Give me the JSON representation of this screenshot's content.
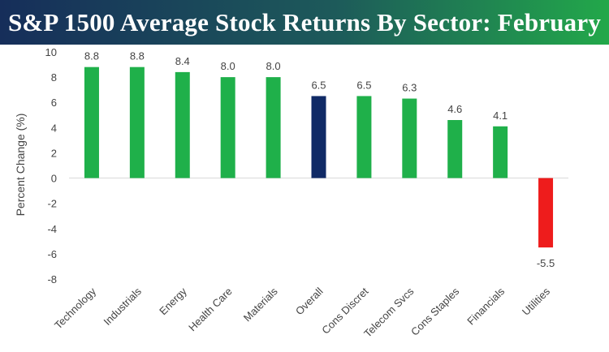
{
  "chart_data": {
    "type": "bar",
    "title": "S&P 1500 Average Stock Returns By Sector: February",
    "ylabel": "Percent Change (%)",
    "xlabel": "",
    "categories": [
      "Technology",
      "Industrials",
      "Energy",
      "Health Care",
      "Materials",
      "Overall",
      "Cons Discret",
      "Telecom Svcs",
      "Cons Staples",
      "Financials",
      "Utilities"
    ],
    "values": [
      8.8,
      8.8,
      8.4,
      8.0,
      8.0,
      6.5,
      6.5,
      6.3,
      4.6,
      4.1,
      -5.5
    ],
    "value_labels": [
      "8.8",
      "8.8",
      "8.4",
      "8.0",
      "8.0",
      "6.5",
      "6.5",
      "6.3",
      "4.6",
      "4.1",
      "-5.5"
    ],
    "bar_colors": [
      "#1fb04a",
      "#1fb04a",
      "#1fb04a",
      "#1fb04a",
      "#1fb04a",
      "#102a66",
      "#1fb04a",
      "#1fb04a",
      "#1fb04a",
      "#1fb04a",
      "#ee1c1c"
    ],
    "ylim": [
      -8,
      10
    ],
    "yticks": [
      10,
      8,
      6,
      4,
      2,
      0,
      -2,
      -4,
      -6,
      -8
    ],
    "grid": false,
    "legend": "none"
  }
}
